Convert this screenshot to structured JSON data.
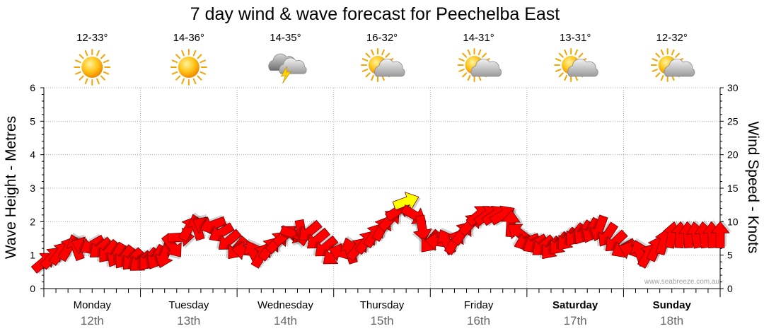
{
  "title": "7 day wind & wave forecast for Peechelba East",
  "watermark": "www.seabreeze.com.au",
  "left_axis_label": "Wave Height - Metres",
  "right_axis_label": "Wind Speed - Knots",
  "days": [
    {
      "name": "Monday",
      "date": "12th",
      "temp": "12-33°",
      "icon": "sun-icon",
      "bold": false
    },
    {
      "name": "Tuesday",
      "date": "13th",
      "temp": "14-36°",
      "icon": "sun-icon",
      "bold": false
    },
    {
      "name": "Wednesday",
      "date": "14th",
      "temp": "14-35°",
      "icon": "storm-cloud-icon",
      "bold": false
    },
    {
      "name": "Thursday",
      "date": "15th",
      "temp": "16-32°",
      "icon": "partly-cloudy-icon",
      "bold": false
    },
    {
      "name": "Friday",
      "date": "16th",
      "temp": "14-31°",
      "icon": "partly-cloudy-icon",
      "bold": false
    },
    {
      "name": "Saturday",
      "date": "17th",
      "temp": "13-31°",
      "icon": "partly-cloudy-icon",
      "bold": true
    },
    {
      "name": "Sunday",
      "date": "18th",
      "temp": "12-32°",
      "icon": "partly-cloudy-icon",
      "bold": true
    }
  ],
  "colors": {
    "arrow": "#ff0000",
    "arrow_strong": "#ffff00",
    "grid": "#aaaaaa",
    "text": "#000000",
    "date_text": "#666666"
  },
  "chart_data": {
    "type": "line",
    "title": "7 day wind & wave forecast for Peechelba East",
    "left_axis": {
      "label": "Wave Height - Metres",
      "range": [
        0,
        6
      ],
      "ticks": [
        0,
        1,
        2,
        3,
        4,
        5,
        6
      ]
    },
    "right_axis": {
      "label": "Wind Speed - Knots",
      "range": [
        0,
        30
      ],
      "ticks": [
        0,
        5,
        10,
        15,
        20,
        25,
        30
      ]
    },
    "x_unit": "day index (0 = Monday 12th 00:00, 7 = Monday 19th 00:00)",
    "series": [
      {
        "name": "Wind Speed - Knots",
        "x": [
          0.0,
          0.25,
          0.5,
          0.75,
          1.0,
          1.25,
          1.5,
          1.75,
          2.0,
          2.25,
          2.5,
          2.75,
          3.0,
          3.25,
          3.5,
          3.75,
          4.0,
          4.25,
          4.5,
          4.75,
          5.0,
          5.25,
          5.5,
          5.75,
          6.0,
          6.25,
          6.5,
          6.75,
          7.0
        ],
        "values": [
          4,
          6,
          6.5,
          5,
          4,
          5,
          9,
          9.5,
          6,
          5,
          8,
          8.5,
          5,
          6,
          9,
          13,
          7,
          7,
          11,
          11,
          7,
          6,
          8,
          9,
          6,
          5,
          8,
          8,
          8
        ],
        "direction_deg": [
          40,
          60,
          210,
          240,
          220,
          250,
          60,
          200,
          230,
          60,
          40,
          220,
          220,
          50,
          60,
          20,
          230,
          60,
          40,
          30,
          200,
          230,
          230,
          250,
          210,
          60,
          80,
          100,
          90
        ]
      }
    ]
  }
}
